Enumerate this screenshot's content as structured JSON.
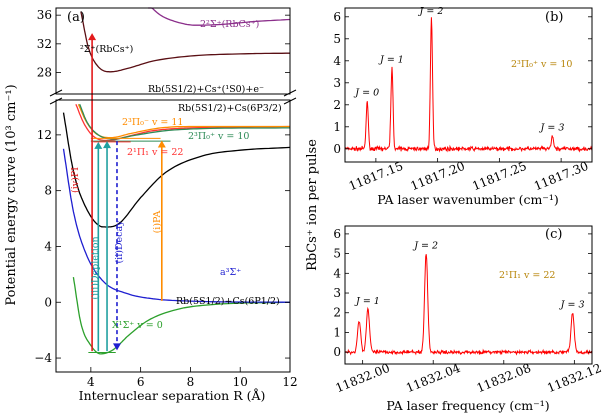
{
  "chart_data": [
    {
      "id": "a",
      "type": "line",
      "panel_label": "(a)",
      "xlabel": "Internuclear separation R (Å)",
      "ylabel": "Potential energy curve (10³ cm⁻¹)",
      "xlim": [
        2.6,
        12
      ],
      "x_ticks": [
        "4",
        "6",
        "8",
        "10",
        "12"
      ],
      "ylim_lower": [
        -5,
        14.5
      ],
      "ylim_upper": [
        25,
        37
      ],
      "y_ticks_lower": [
        "-4",
        "0",
        "4",
        "8",
        "12"
      ],
      "y_ticks_upper": [
        "28",
        "32",
        "36"
      ],
      "axis_break": true,
      "curves": [
        {
          "label": "X¹Σ⁺ v = 0",
          "color": "#2ca02c",
          "points": [
            [
              3.3,
              1.8
            ],
            [
              3.6,
              -1.5
            ],
            [
              4.0,
              -3.1
            ],
            [
              4.4,
              -3.7
            ],
            [
              4.9,
              -3.4
            ],
            [
              5.5,
              -2.4
            ],
            [
              6.3,
              -1.3
            ],
            [
              7.5,
              -0.5
            ],
            [
              9,
              -0.15
            ],
            [
              12,
              0
            ]
          ]
        },
        {
          "label": "a³Σ⁺",
          "color": "#1f1fd0",
          "points": [
            [
              2.9,
              11.0
            ],
            [
              3.3,
              6.5
            ],
            [
              3.8,
              3.5
            ],
            [
              4.5,
              1.5
            ],
            [
              5.5,
              0.6
            ],
            [
              6.5,
              0.25
            ],
            [
              8,
              0.08
            ],
            [
              12,
              0
            ]
          ]
        },
        {
          "label": "Rb(5S1/2)+Cs(6P1/2)",
          "color": "#000000",
          "points": [
            [
              2.9,
              13.6
            ],
            [
              3.3,
              9.4
            ],
            [
              3.8,
              6.8
            ],
            [
              4.5,
              5.4
            ],
            [
              5.1,
              5.6
            ],
            [
              6,
              7.5
            ],
            [
              7,
              9.3
            ],
            [
              8.5,
              10.5
            ],
            [
              10,
              10.9
            ],
            [
              12,
              11.1
            ]
          ]
        },
        {
          "label": "2¹Π₁ v = 22",
          "color": "#ff3333",
          "points": [
            [
              3.4,
              14.2
            ],
            [
              3.7,
              12.9
            ],
            [
              4.1,
              11.9
            ],
            [
              4.7,
              11.6
            ],
            [
              5.5,
              11.9
            ],
            [
              6.5,
              12.3
            ],
            [
              8,
              12.5
            ],
            [
              12,
              12.6
            ]
          ]
        },
        {
          "label": "2³Π₀⁻ v = 11",
          "color": "#ff8c00",
          "points": [
            [
              3.5,
              14.2
            ],
            [
              3.8,
              13.0
            ],
            [
              4.2,
              12.1
            ],
            [
              4.8,
              11.8
            ],
            [
              5.6,
              12.1
            ],
            [
              6.8,
              12.5
            ],
            [
              8.5,
              12.6
            ],
            [
              12,
              12.6
            ]
          ]
        },
        {
          "label": "2³Π₀⁺ v = 10",
          "color": "#2e8b57",
          "points": [
            [
              3.55,
              14.2
            ],
            [
              3.85,
              12.9
            ],
            [
              4.3,
              12.0
            ],
            [
              4.9,
              11.7
            ],
            [
              5.7,
              11.95
            ],
            [
              7,
              12.3
            ],
            [
              8.5,
              12.45
            ],
            [
              12,
              12.5
            ]
          ]
        },
        {
          "label": "²Σ⁺(RbCs⁺)",
          "color": "#5a0f14",
          "points": [
            [
              3.6,
              36.5
            ],
            [
              3.9,
              31.5
            ],
            [
              4.3,
              28.8
            ],
            [
              4.8,
              28.1
            ],
            [
              5.5,
              28.6
            ],
            [
              6.5,
              29.6
            ],
            [
              8,
              30.3
            ],
            [
              10,
              30.6
            ],
            [
              12,
              30.7
            ]
          ]
        },
        {
          "label": "2²Σ⁺(RbCs⁺)",
          "color": "#8b2f8b",
          "points": [
            [
              6.3,
              37.5
            ],
            [
              6.8,
              36.0
            ],
            [
              7.4,
              35.1
            ],
            [
              8.2,
              34.6
            ],
            [
              9.2,
              34.7
            ],
            [
              10.5,
              35.1
            ],
            [
              12,
              35.4
            ]
          ]
        }
      ],
      "asymptote_labels": [
        "Rb(5S1/2)+Cs⁺(¹S0)+e⁻",
        "Rb(5S1/2)+Cs(6P3/2)"
      ],
      "arrow_labels": [
        "(i)PA",
        "(ii)Decay",
        "(iii)Depletion",
        "(iv)PI"
      ],
      "colors": {
        "pa": "#ff8c00",
        "decay": "#1f1fd0",
        "depletion": "#20a0a0",
        "pi": "#e31a1c"
      }
    },
    {
      "id": "b",
      "type": "line",
      "panel_label": "(b)",
      "annotation": "2³Π₀⁺ v = 10",
      "xlabel": "PA laser wavenumber (cm⁻¹)",
      "xlim": [
        11817.125,
        11817.325
      ],
      "x_ticks": [
        "11817.15",
        "11817.20",
        "11817.25",
        "11817.30"
      ],
      "ylim": [
        -0.6,
        6.4
      ],
      "y_ticks": [
        "0",
        "1",
        "2",
        "3",
        "4",
        "5",
        "6"
      ],
      "peaks": [
        {
          "label": "J = 0",
          "x": 11817.143,
          "y": 2.2
        },
        {
          "label": "J = 1",
          "x": 11817.163,
          "y": 3.7
        },
        {
          "label": "J = 2",
          "x": 11817.195,
          "y": 5.9
        },
        {
          "label": "J = 3",
          "x": 11817.293,
          "y": 0.6
        }
      ],
      "color": "#ff0000"
    },
    {
      "id": "c",
      "type": "line",
      "panel_label": "(c)",
      "annotation": "2¹Π₁ v = 22",
      "xlabel": "PA laser frequency (cm⁻¹)",
      "xlim": [
        11831.99,
        11832.13
      ],
      "x_ticks": [
        "11832.00",
        "11832.04",
        "11832.08",
        "11832.12"
      ],
      "ylim": [
        -0.6,
        6.4
      ],
      "y_ticks": [
        "0",
        "1",
        "2",
        "3",
        "4",
        "5",
        "6"
      ],
      "peaks": [
        {
          "label": "J = 1",
          "x": 11832.003,
          "y": 2.2
        },
        {
          "label": "J = 2",
          "x": 11832.036,
          "y": 5.0
        },
        {
          "label": "J = 3",
          "x": 11832.119,
          "y": 2.0
        }
      ],
      "color": "#ff0000"
    }
  ],
  "shared_ylabel": "RbCs⁺ ion per pulse"
}
